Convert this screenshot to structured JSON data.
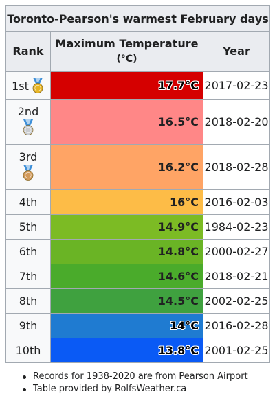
{
  "table": {
    "caption": "Toronto-Pearson's warmest February days",
    "headers": {
      "rank": "Rank",
      "temp": "Maximum Temperature",
      "temp_unit": "(°C)",
      "year": "Year"
    },
    "rows": [
      {
        "rank": "1st",
        "medal": "gold-medal-icon",
        "temp": "17.7°C",
        "date": "2017-02-23",
        "color": "#d50000"
      },
      {
        "rank": "2nd",
        "medal": "silver-medal-icon",
        "temp": "16.5°C",
        "date": "2018-02-20",
        "color": "#ff8787"
      },
      {
        "rank": "3rd",
        "medal": "bronze-medal-icon",
        "temp": "16.2°C",
        "date": "2018-02-28",
        "color": "#ffa465"
      },
      {
        "rank": "4th",
        "medal": "",
        "temp": "16°C",
        "date": "2016-02-03",
        "color": "#fdbc47"
      },
      {
        "rank": "5th",
        "medal": "",
        "temp": "14.9°C",
        "date": "1984-02-23",
        "color": "#7cbb24"
      },
      {
        "rank": "6th",
        "medal": "",
        "temp": "14.8°C",
        "date": "2000-02-27",
        "color": "#6ab425"
      },
      {
        "rank": "7th",
        "medal": "",
        "temp": "14.6°C",
        "date": "2018-02-21",
        "color": "#4aab2b"
      },
      {
        "rank": "8th",
        "medal": "",
        "temp": "14.5°C",
        "date": "2002-02-25",
        "color": "#3fa13f"
      },
      {
        "rank": "9th",
        "medal": "",
        "temp": "14°C",
        "date": "2016-02-28",
        "color": "#1f7bd1"
      },
      {
        "rank": "10th",
        "medal": "",
        "temp": "13.8°C",
        "date": "2001-02-25",
        "color": "#0a5af5"
      }
    ]
  },
  "notes": [
    "Records for 1938-2020 are from Pearson Airport",
    "Table provided by RolfsWeather.ca"
  ],
  "medal_colors": {
    "gold": "#e6b422",
    "silver": "#c9ccd0",
    "bronze": "#d29a5a",
    "ribbon": "#3d8fd8"
  }
}
